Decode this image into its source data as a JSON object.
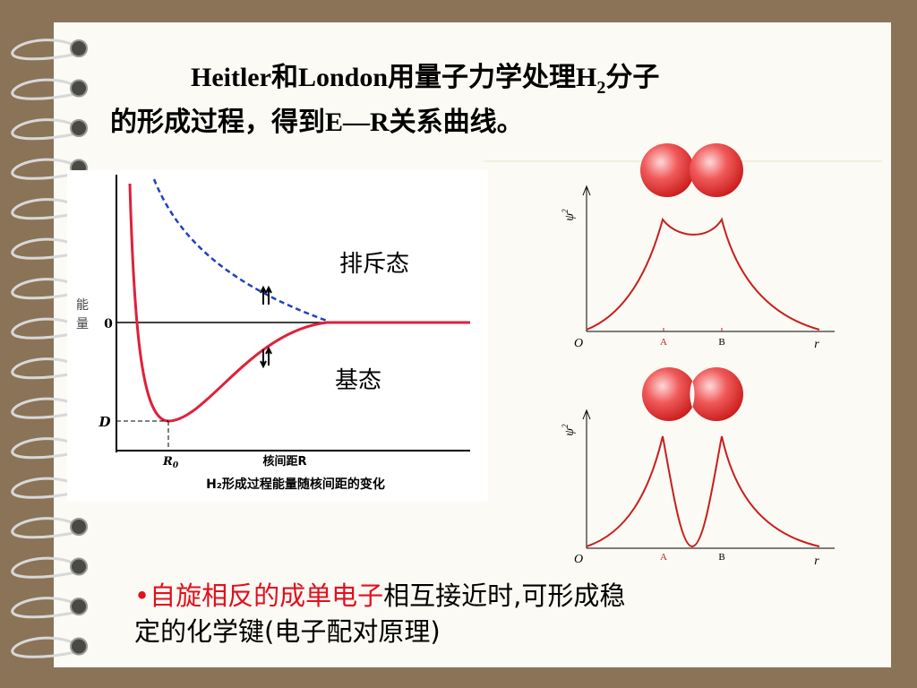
{
  "title": {
    "line1": {
      "part1": "Heitler和London用量子力学处理H",
      "subscript": "2",
      "part2": "分子"
    },
    "line2": "的形成过程，得到E—R关系曲线。"
  },
  "energy_diagram": {
    "y_axis_label": [
      "能",
      "量"
    ],
    "zero_label": "0",
    "depth_label": "D",
    "equilibrium_label": {
      "main": "R",
      "subscript": "0"
    },
    "x_axis_label": "核间距R",
    "caption": "H₂形成过程能量随核间距的变化",
    "repulsive_label": "排斥态",
    "ground_label": "基态"
  },
  "density_plots": [
    {
      "y_label": {
        "main": "ψ",
        "superscript": "2"
      },
      "origin": "O",
      "point_a": "A",
      "point_b": "B",
      "x_label": "r"
    },
    {
      "y_label": {
        "main": "ψ",
        "superscript": "2"
      },
      "origin": "O",
      "point_a": "A",
      "point_b": "B",
      "x_label": "r"
    }
  ],
  "bullet": {
    "marker": "•",
    "highlight": "自旋相反的成单电子",
    "line1_rest": "相互接近时,可形成稳",
    "line2": "定的化学键(电子配对原理)"
  }
}
